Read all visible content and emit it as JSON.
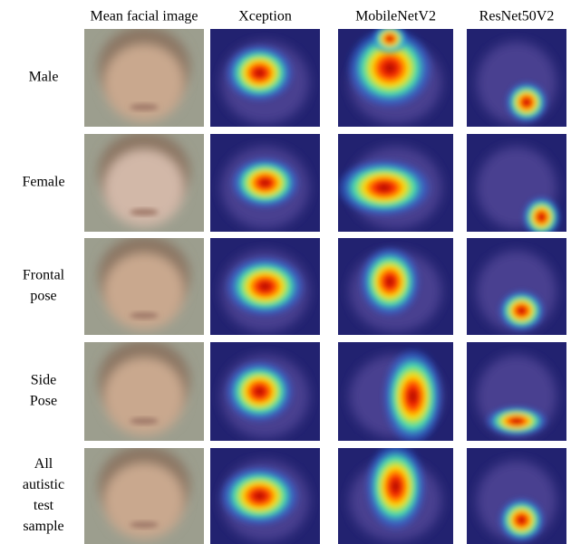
{
  "columns": [
    "Mean facial image",
    "Xception",
    "MobileNetV2",
    "ResNet50V2"
  ],
  "rows": [
    [
      "Male"
    ],
    [
      "Female"
    ],
    [
      "Frontal",
      "pose"
    ],
    [
      "Side",
      "Pose"
    ],
    [
      "All",
      "autistic",
      "test",
      "sample"
    ]
  ]
}
